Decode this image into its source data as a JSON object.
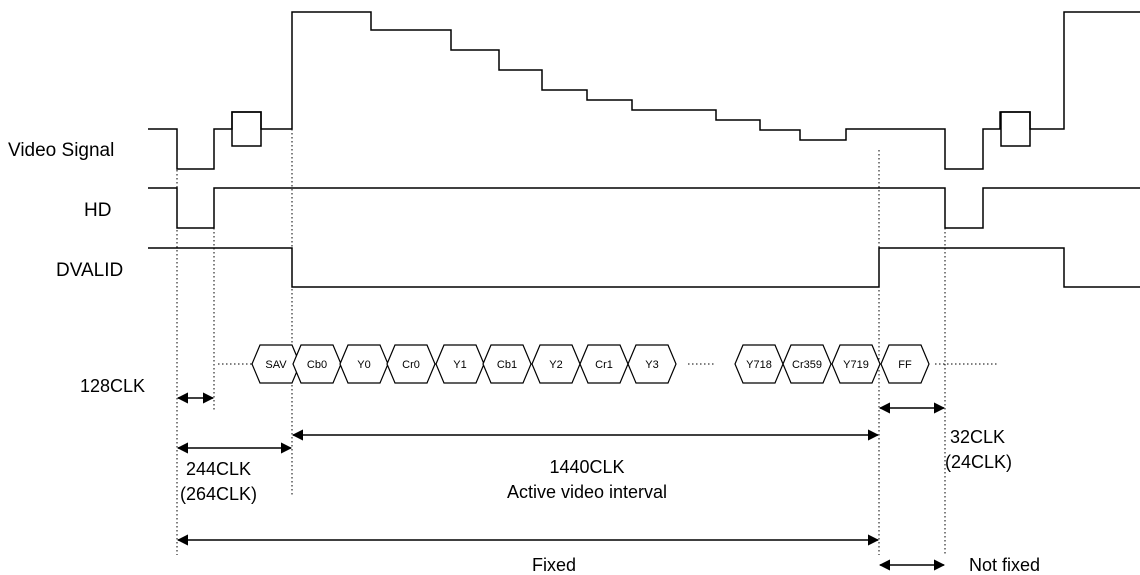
{
  "signals": {
    "video": "Video Signal",
    "hd": "HD",
    "dvalid": "DVALID"
  },
  "data_cells": [
    "SAV",
    "Cb0",
    "Y0",
    "Cr0",
    "Y1",
    "Cb1",
    "Y2",
    "Cr1",
    "Y3",
    "Y718",
    "Cr359",
    "Y719",
    "FF"
  ],
  "dimensions": {
    "clk128": "128CLK",
    "clk244": "244CLK",
    "clk264": "(264CLK)",
    "clk1440": "1440CLK",
    "active_interval": "Active video interval",
    "clk32": "32CLK",
    "clk24": "(24CLK)",
    "fixed": "Fixed",
    "not_fixed": "Not fixed"
  }
}
